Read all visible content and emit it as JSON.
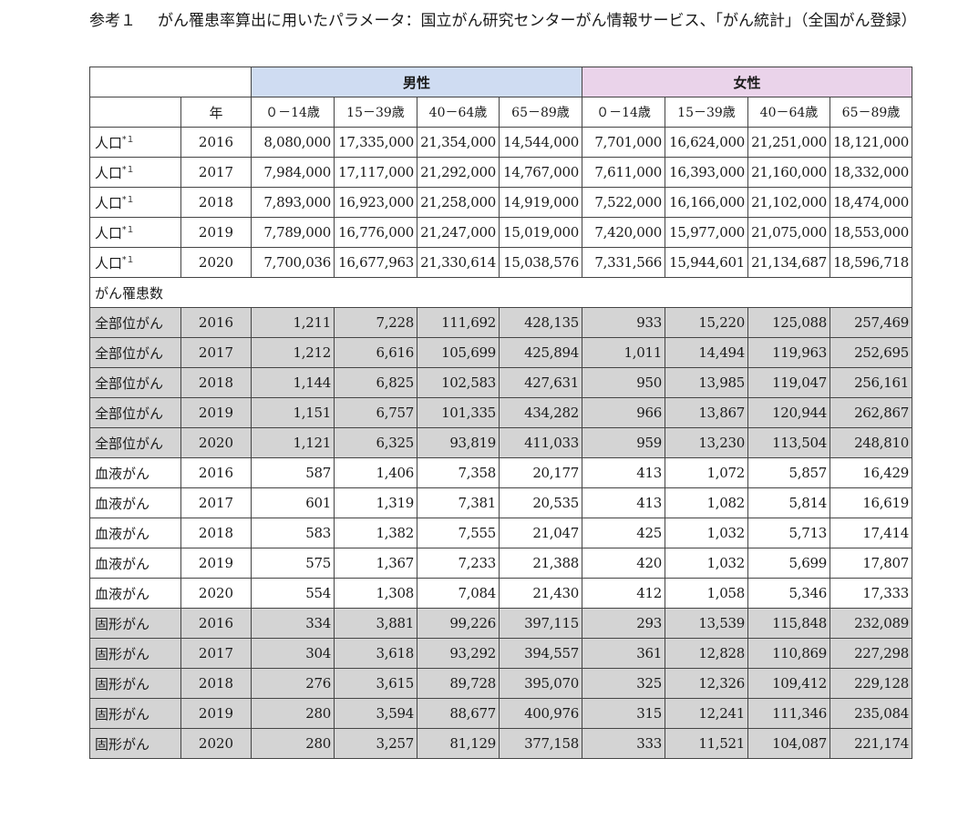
{
  "caption": {
    "label": "参考１",
    "text": "がん罹患率算出に用いたパラメータ：国立がん研究センターがん情報サービス、「がん統計」（全国がん登録）"
  },
  "table": {
    "group_headers": {
      "male": "男性",
      "female": "女性"
    },
    "year_header": "年",
    "age_groups": [
      "０－14歳",
      "15－39歳",
      "40－64歳",
      "65－89歳",
      "０－14歳",
      "15－39歳",
      "40－64歳",
      "65－89歳"
    ],
    "population": [
      {
        "label": "人口",
        "sup": "*１",
        "year": "2016",
        "values": [
          "8,080,000",
          "17,335,000",
          "21,354,000",
          "14,544,000",
          "7,701,000",
          "16,624,000",
          "21,251,000",
          "18,121,000"
        ]
      },
      {
        "label": "人口",
        "sup": "*１",
        "year": "2017",
        "values": [
          "7,984,000",
          "17,117,000",
          "21,292,000",
          "14,767,000",
          "7,611,000",
          "16,393,000",
          "21,160,000",
          "18,332,000"
        ]
      },
      {
        "label": "人口",
        "sup": "*１",
        "year": "2018",
        "values": [
          "7,893,000",
          "16,923,000",
          "21,258,000",
          "14,919,000",
          "7,522,000",
          "16,166,000",
          "21,102,000",
          "18,474,000"
        ]
      },
      {
        "label": "人口",
        "sup": "*１",
        "year": "2019",
        "values": [
          "7,789,000",
          "16,776,000",
          "21,247,000",
          "15,019,000",
          "7,420,000",
          "15,977,000",
          "21,075,000",
          "18,553,000"
        ]
      },
      {
        "label": "人口",
        "sup": "*１",
        "year": "2020",
        "values": [
          "7,700,036",
          "16,677,963",
          "21,330,614",
          "15,038,576",
          "7,331,566",
          "15,944,601",
          "21,134,687",
          "18,596,718"
        ]
      }
    ],
    "section_label": "がん罹患数",
    "cancer": [
      {
        "label": "全部位がん",
        "year": "2016",
        "shade": true,
        "values": [
          "1,211",
          "7,228",
          "111,692",
          "428,135",
          "933",
          "15,220",
          "125,088",
          "257,469"
        ]
      },
      {
        "label": "全部位がん",
        "year": "2017",
        "shade": true,
        "values": [
          "1,212",
          "6,616",
          "105,699",
          "425,894",
          "1,011",
          "14,494",
          "119,963",
          "252,695"
        ]
      },
      {
        "label": "全部位がん",
        "year": "2018",
        "shade": true,
        "values": [
          "1,144",
          "6,825",
          "102,583",
          "427,631",
          "950",
          "13,985",
          "119,047",
          "256,161"
        ]
      },
      {
        "label": "全部位がん",
        "year": "2019",
        "shade": true,
        "values": [
          "1,151",
          "6,757",
          "101,335",
          "434,282",
          "966",
          "13,867",
          "120,944",
          "262,867"
        ]
      },
      {
        "label": "全部位がん",
        "year": "2020",
        "shade": true,
        "values": [
          "1,121",
          "6,325",
          "93,819",
          "411,033",
          "959",
          "13,230",
          "113,504",
          "248,810"
        ]
      },
      {
        "label": "血液がん",
        "year": "2016",
        "shade": false,
        "values": [
          "587",
          "1,406",
          "7,358",
          "20,177",
          "413",
          "1,072",
          "5,857",
          "16,429"
        ]
      },
      {
        "label": "血液がん",
        "year": "2017",
        "shade": false,
        "values": [
          "601",
          "1,319",
          "7,381",
          "20,535",
          "413",
          "1,082",
          "5,814",
          "16,619"
        ]
      },
      {
        "label": "血液がん",
        "year": "2018",
        "shade": false,
        "values": [
          "583",
          "1,382",
          "7,555",
          "21,047",
          "425",
          "1,032",
          "5,713",
          "17,414"
        ]
      },
      {
        "label": "血液がん",
        "year": "2019",
        "shade": false,
        "values": [
          "575",
          "1,367",
          "7,233",
          "21,388",
          "420",
          "1,032",
          "5,699",
          "17,807"
        ]
      },
      {
        "label": "血液がん",
        "year": "2020",
        "shade": false,
        "values": [
          "554",
          "1,308",
          "7,084",
          "21,430",
          "412",
          "1,058",
          "5,346",
          "17,333"
        ]
      },
      {
        "label": "固形がん",
        "year": "2016",
        "shade": true,
        "values": [
          "334",
          "3,881",
          "99,226",
          "397,115",
          "293",
          "13,539",
          "115,848",
          "232,089"
        ]
      },
      {
        "label": "固形がん",
        "year": "2017",
        "shade": true,
        "values": [
          "304",
          "3,618",
          "93,292",
          "394,557",
          "361",
          "12,828",
          "110,869",
          "227,298"
        ]
      },
      {
        "label": "固形がん",
        "year": "2018",
        "shade": true,
        "values": [
          "276",
          "3,615",
          "89,728",
          "395,070",
          "325",
          "12,326",
          "109,412",
          "229,128"
        ]
      },
      {
        "label": "固形がん",
        "year": "2019",
        "shade": true,
        "values": [
          "280",
          "3,594",
          "88,677",
          "400,976",
          "315",
          "12,241",
          "111,346",
          "235,084"
        ]
      },
      {
        "label": "固形がん",
        "year": "2020",
        "shade": true,
        "values": [
          "280",
          "3,257",
          "81,129",
          "377,158",
          "333",
          "11,521",
          "104,087",
          "221,174"
        ]
      }
    ],
    "colors": {
      "male_header": "#cfdcf2",
      "female_header": "#ead3ea",
      "shaded_row": "#d4d4d4"
    }
  }
}
